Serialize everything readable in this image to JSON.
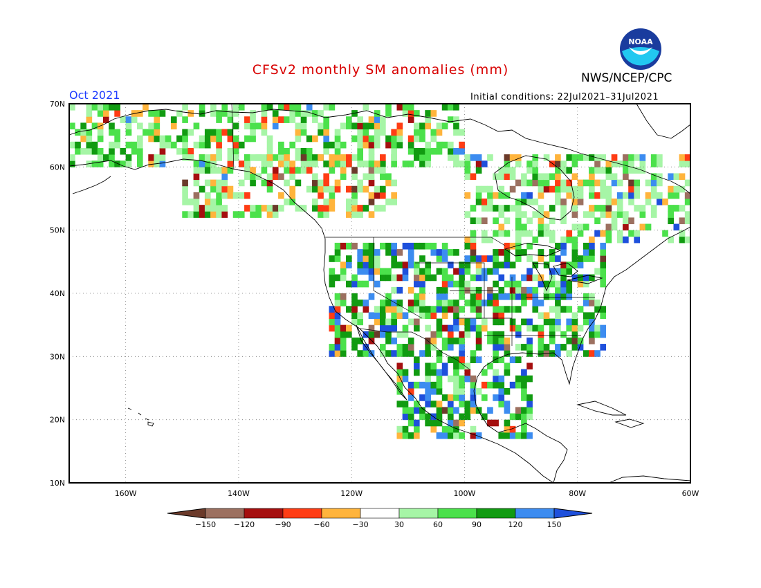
{
  "title": "CFSv2 monthly SM anomalies (mm)",
  "agency": "NWS/NCEP/CPC",
  "logo_text": "NOAA",
  "month": "Oct 2021",
  "initial_conditions": "Initial conditions: 22Jul2021–31Jul2021",
  "lat_labels": [
    "70N",
    "60N",
    "50N",
    "40N",
    "30N",
    "20N",
    "10N"
  ],
  "lon_labels": [
    "160W",
    "140W",
    "120W",
    "100W",
    "80W",
    "60W"
  ],
  "colorbar": {
    "ticks": [
      "−150",
      "−120",
      "−90",
      "−60",
      "−30",
      "30",
      "60",
      "90",
      "120",
      "150"
    ],
    "colors": [
      "#6b3a2a",
      "#9c7060",
      "#a50f0f",
      "#ff3c14",
      "#ffb43c",
      "#ffffff",
      "#a6f5a6",
      "#4be14b",
      "#119b11",
      "#3c8cf0",
      "#1e50dc"
    ]
  },
  "map": {
    "lon_range": [
      -170,
      -60
    ],
    "lat_range": [
      10,
      70
    ],
    "gridlines": "dotted"
  }
}
